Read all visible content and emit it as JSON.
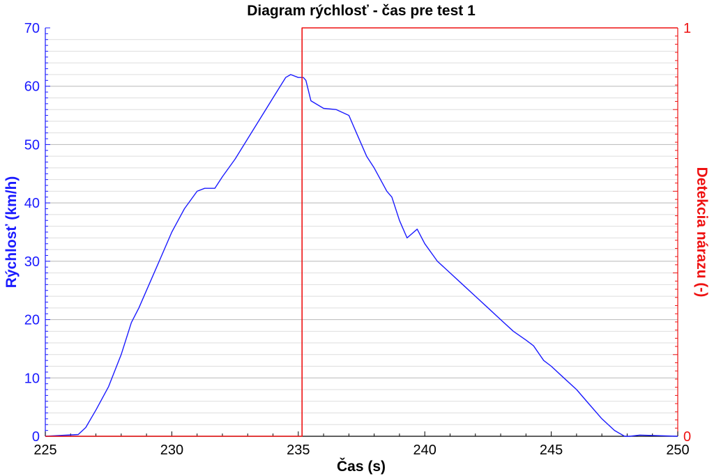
{
  "chart_data": {
    "type": "line",
    "title": "Diagram rýchlosť - čas pre test 1",
    "xlabel": "Čas (s)",
    "ylabel_left": "Rýchlosť (km/h)",
    "ylabel_right": "Detekcia nárazu (-)",
    "xlim": [
      225,
      250
    ],
    "ylim_left": [
      0,
      70
    ],
    "ylim_right": [
      0,
      1
    ],
    "x_ticks": [
      "225",
      "230",
      "235",
      "240",
      "245",
      "250"
    ],
    "y_left_ticks": [
      "0",
      "10",
      "20",
      "30",
      "40",
      "50",
      "60",
      "70"
    ],
    "y_right_ticks": [
      "0",
      "1"
    ],
    "grid": true,
    "colors": {
      "speed": "#1a1aff",
      "impact": "#ee1111",
      "grid": "#c8c8c8"
    },
    "series": [
      {
        "axis": "left",
        "x": [
          225,
          226.3,
          226.6,
          227.0,
          227.5,
          228.0,
          228.4,
          228.7,
          229.0,
          229.5,
          230.0,
          230.5,
          231.0,
          231.3,
          231.7,
          232.0,
          232.5,
          233.0,
          233.5,
          234.0,
          234.5,
          234.7,
          235.0,
          235.2,
          235.3,
          235.5,
          236.0,
          236.5,
          237.0,
          237.3,
          237.7,
          238.0,
          238.5,
          238.7,
          239.0,
          239.3,
          239.7,
          240.0,
          240.5,
          241.0,
          241.5,
          242.0,
          242.5,
          243.0,
          243.5,
          244.0,
          244.3,
          244.7,
          245.0,
          245.5,
          246.0,
          246.5,
          247.0,
          247.5,
          247.9,
          248.1,
          248.5,
          250
        ],
        "values": [
          0,
          0.3,
          1.5,
          4.5,
          8.5,
          14,
          19.5,
          22,
          25,
          30,
          35,
          39,
          42,
          42.5,
          42.5,
          44.5,
          47.5,
          51,
          54.5,
          58,
          61.5,
          62,
          61.5,
          61.5,
          61,
          57.5,
          56.2,
          56,
          55,
          52,
          48,
          46,
          42,
          41,
          37,
          34,
          35.5,
          33,
          30,
          28,
          26,
          24,
          22,
          20,
          18,
          16.5,
          15.5,
          13,
          12,
          10,
          8,
          5.5,
          3,
          1,
          0,
          0,
          0.2,
          0
        ]
      },
      {
        "axis": "right",
        "x": [
          225,
          235.15,
          235.15,
          250
        ],
        "values": [
          0,
          0,
          1,
          1
        ]
      }
    ]
  }
}
